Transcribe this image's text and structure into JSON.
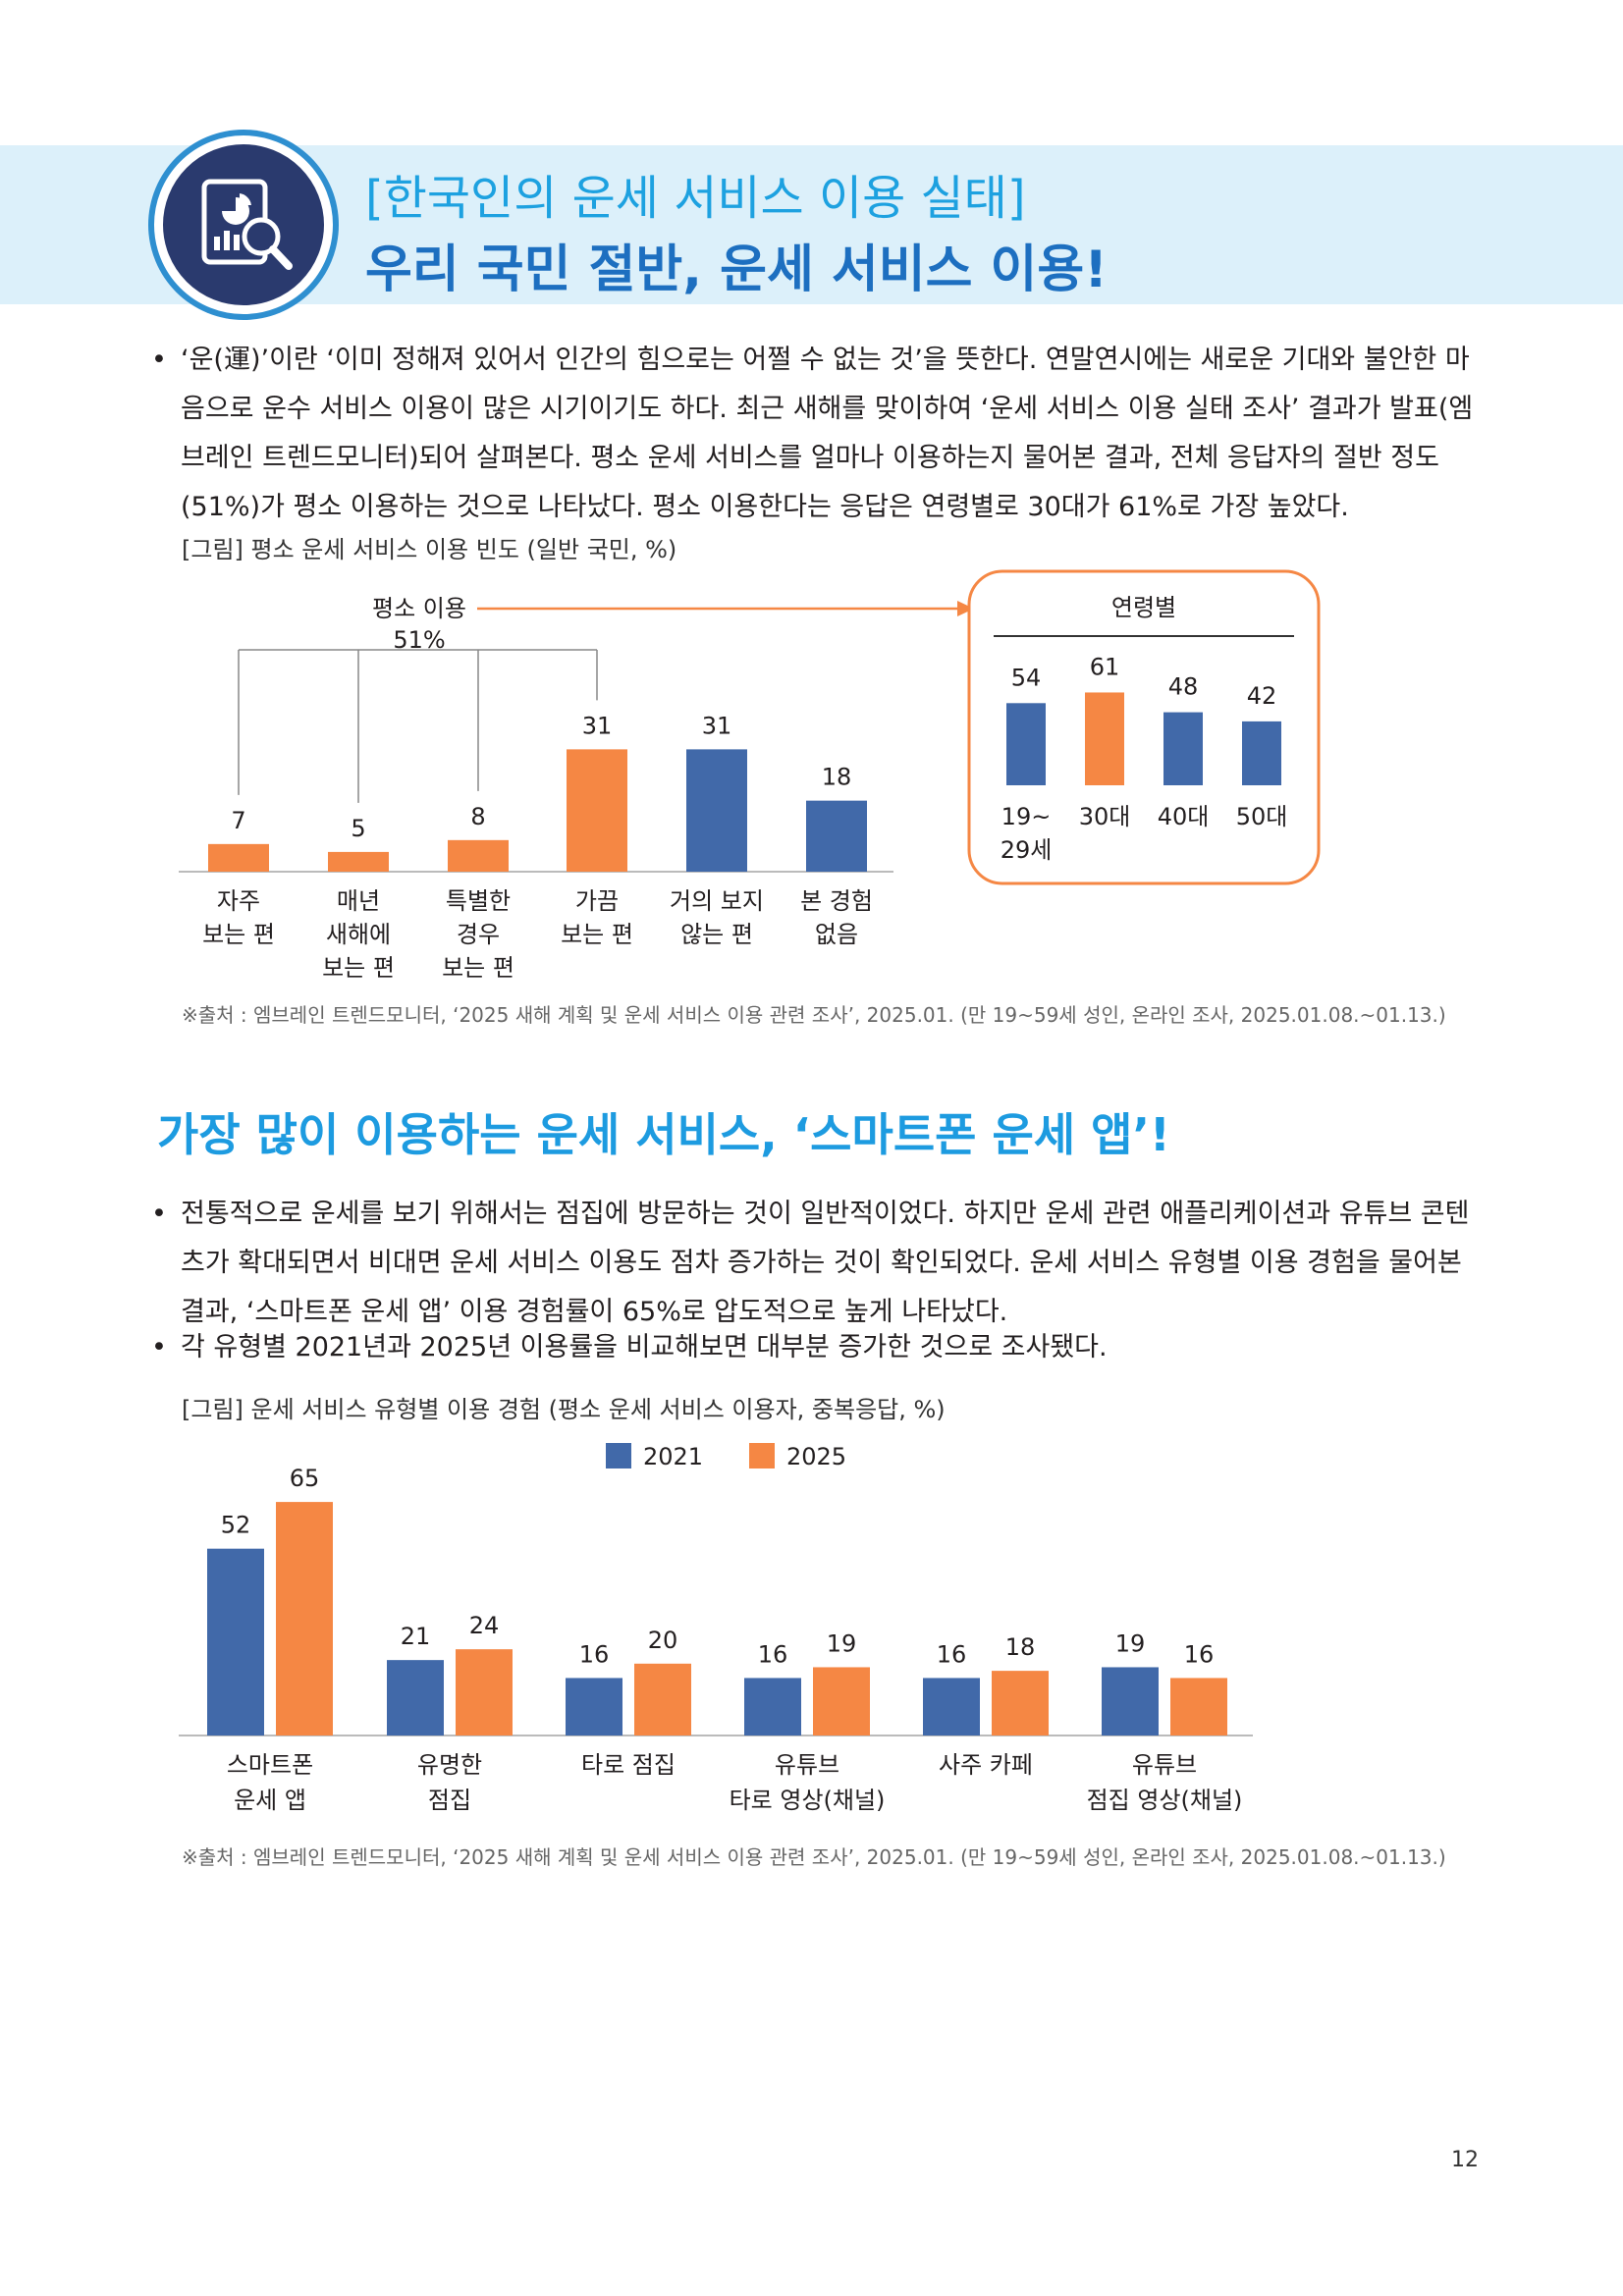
{
  "header": {
    "title_line1": "[한국인의 운세 서비스 이용 실태]",
    "title_line2": "우리 국민 절반, 운세 서비스 이용!"
  },
  "intro": {
    "paragraph": "‘운(運)’이란 ‘이미 정해져 있어서 인간의 힘으로는 어쩔 수 없는 것’을 뜻한다. 연말연시에는 새로운 기대와 불안한 마음으로 운수 서비스 이용이 많은 시기이기도 하다. 최근 새해를 맞이하여 ‘운세 서비스 이용 실태 조사’ 결과가 발표(엠브레인 트렌드모니터)되어 살펴본다. 평소 운세 서비스를 얼마나 이용하는지 물어본 결과, 전체 응답자의 절반 정도(51%)가 평소 이용하는 것으로 나타났다. 평소 이용한다는 응답은 연령별로 30대가 61%로 가장 높았다."
  },
  "figure1": {
    "caption": "[그림] 평소 운세 서비스 이용 빈도 (일반 국민, %)",
    "source": "※출처 : 엠브레인 트렌드모니터, ‘2025 새해 계획 및 운세 서비스 이용 관련 조사’, 2025.01. (만 19~59세 성인, 온라인 조사, 2025.01.08.~01.13.)"
  },
  "section2": {
    "title": "가장 많이 이용하는 운세 서비스, ‘스마트폰 운세 앱’!",
    "paragraph1": "전통적으로 운세를 보기 위해서는 점집에 방문하는 것이 일반적이었다. 하지만 운세 관련 애플리케이션과 유튜브 콘텐츠가 확대되면서 비대면 운세 서비스 이용도 점차 증가하는 것이 확인되었다. 운세 서비스 유형별 이용 경험을 물어본 결과, ‘스마트폰 운세 앱’ 이용 경험률이 65%로 압도적으로 높게 나타났다.",
    "paragraph2": "각 유형별 2021년과 2025년 이용률을 비교해보면 대부분 증가한 것으로 조사됐다."
  },
  "figure2": {
    "caption": "[그림] 운세 서비스 유형별 이용 경험 (평소 운세 서비스 이용자, 중복응답, %)",
    "source": "※출처 : 엠브레인 트렌드모니터, ‘2025 새해 계획 및 운세 서비스 이용 관련 조사’, 2025.01. (만 19~59세 성인, 온라인 조사, 2025.01.08.~01.13.)"
  },
  "page_number": "12",
  "colors": {
    "blue": "#4169a9",
    "orange": "#f58744",
    "header_bg": "#dcf0fa",
    "title_blue": "#1d6fc0"
  },
  "icons": {
    "logo": "chart-magnifier-icon"
  },
  "chart_data": [
    {
      "type": "bar",
      "categories": [
        [
          "자주",
          "보는 편"
        ],
        [
          "매년",
          "새해에",
          "보는 편"
        ],
        [
          "특별한",
          "경우",
          "보는 편"
        ],
        [
          "가끔",
          "보는 편"
        ],
        [
          "거의 보지",
          "않는 편"
        ],
        [
          "본 경험",
          "없음"
        ]
      ],
      "values": [
        7,
        5,
        8,
        31,
        31,
        18
      ],
      "bar_colors": [
        "#f58744",
        "#f58744",
        "#f58744",
        "#f58744",
        "#4169a9",
        "#4169a9"
      ],
      "annotation": {
        "label": "평소 이용",
        "value": "51%"
      },
      "ylim": [
        0,
        35
      ]
    },
    {
      "type": "bar",
      "title": "연령별",
      "categories": [
        [
          "19~",
          "29세"
        ],
        [
          "30대"
        ],
        [
          "40대"
        ],
        [
          "50대"
        ]
      ],
      "values": [
        54,
        61,
        48,
        42
      ],
      "bar_colors": [
        "#4169a9",
        "#f58744",
        "#4169a9",
        "#4169a9"
      ],
      "ylim": [
        0,
        70
      ]
    },
    {
      "type": "bar",
      "categories": [
        [
          "스마트폰",
          "운세 앱"
        ],
        [
          "유명한",
          "점집"
        ],
        [
          "타로 점집"
        ],
        [
          "유튜브",
          "타로 영상(채널)"
        ],
        [
          "사주 카페"
        ],
        [
          "유튜브",
          "점집 영상(채널)"
        ]
      ],
      "series": [
        {
          "name": "2021",
          "values": [
            52,
            21,
            16,
            16,
            16,
            19
          ],
          "color": "#4169a9"
        },
        {
          "name": "2025",
          "values": [
            65,
            24,
            20,
            19,
            18,
            16
          ],
          "color": "#f58744"
        }
      ],
      "ylim": [
        0,
        70
      ]
    }
  ]
}
